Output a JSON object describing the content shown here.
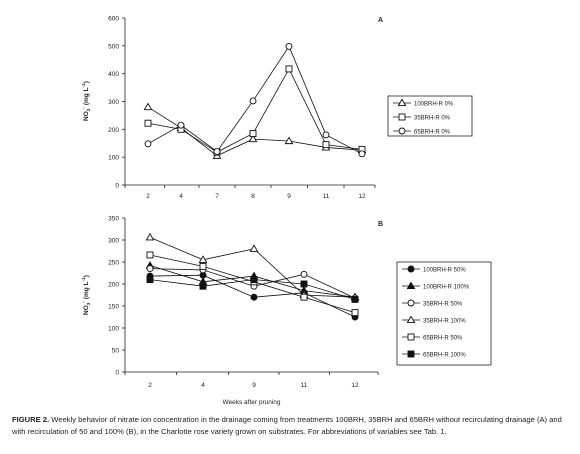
{
  "chart_data": [
    {
      "type": "line",
      "panel_label": "A",
      "categories": [
        "2",
        "4",
        "7",
        "8",
        "9",
        "11",
        "12"
      ],
      "ylabel": "NO3- (mg L-1)",
      "ylabel_parts": {
        "base": "NO",
        "sub": "3",
        "sup1": "-",
        "mid": " (mg L",
        "sup2": "-1",
        "end": ")"
      },
      "xlabel": "",
      "ylim": [
        0,
        600
      ],
      "yticks": [
        0,
        100,
        200,
        300,
        400,
        500,
        600
      ],
      "legend_position": "right",
      "series": [
        {
          "name": "100BRH-R 0%",
          "marker": "triangle-open",
          "values": [
            280,
            205,
            105,
            165,
            158,
            135,
            125
          ]
        },
        {
          "name": "35BRH-R 0%",
          "marker": "square-open",
          "values": [
            222,
            200,
            118,
            185,
            417,
            145,
            128
          ]
        },
        {
          "name": "65BRH-R 0%",
          "marker": "circle-open",
          "values": [
            148,
            215,
            120,
            302,
            498,
            180,
            112
          ]
        }
      ]
    },
    {
      "type": "line",
      "panel_label": "B",
      "categories": [
        "2",
        "4",
        "9",
        "11",
        "12"
      ],
      "ylabel": "NO3- (mg L-1)",
      "ylabel_parts": {
        "base": "NO",
        "sub": "3",
        "sup1": "-",
        "mid": " (mg L",
        "sup2": "-1",
        "end": ")"
      },
      "xlabel": "Weeks after pruning",
      "ylim": [
        0,
        350
      ],
      "yticks": [
        0,
        50,
        100,
        150,
        200,
        250,
        300,
        350
      ],
      "legend_position": "right",
      "series": [
        {
          "name": "100BRH-R 50%",
          "marker": "circle-filled",
          "values": [
            218,
            220,
            170,
            180,
            125
          ]
        },
        {
          "name": "100BRH-R 100%",
          "marker": "triangle-filled",
          "values": [
            242,
            205,
            218,
            185,
            170
          ]
        },
        {
          "name": "35BRH-R 50%",
          "marker": "circle-open",
          "values": [
            235,
            232,
            195,
            222,
            168
          ]
        },
        {
          "name": "35BRH-R 100%",
          "marker": "triangle-open",
          "values": [
            306,
            255,
            280,
            175,
            170
          ]
        },
        {
          "name": "65BRH-R 50%",
          "marker": "square-open",
          "values": [
            266,
            240,
            205,
            170,
            135
          ]
        },
        {
          "name": "65BRH-R 100%",
          "marker": "square-filled",
          "values": [
            210,
            195,
            210,
            200,
            165
          ]
        }
      ]
    }
  ],
  "caption": {
    "label": "FIGURE 2.",
    "text": "Weekly behavior of nitrate ion concentration in the drainage coming from treatments 100BRH, 35BRH and 65BRH without recirculating drainage (A) and with recirculation of 50 and 100% (B), in the Charlotte rose variety grown on substrates. For abbreviations of variables see Tab. 1."
  }
}
